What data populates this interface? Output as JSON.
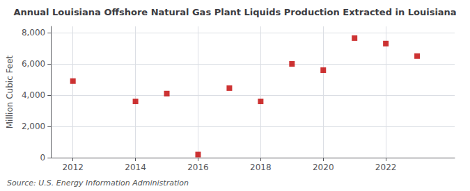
{
  "chart_data": {
    "type": "scatter",
    "title": "Annual Louisiana Offshore Natural Gas Plant Liquids Production Extracted in Louisiana",
    "ylabel": "Million Cubic Feet",
    "source": "Source: U.S. Energy Information Administration",
    "x": [
      2012,
      2014,
      2015,
      2016,
      2017,
      2018,
      2019,
      2020,
      2021,
      2022,
      2023
    ],
    "values": [
      4900,
      3600,
      4100,
      200,
      4450,
      3600,
      6000,
      5600,
      7650,
      7300,
      6500
    ],
    "xlim": [
      2011.3,
      2024.2
    ],
    "ylim": [
      0,
      8400
    ],
    "xticks": [
      2012,
      2014,
      2016,
      2018,
      2020,
      2022
    ],
    "yticks": [
      0,
      {
        "value": 2000,
        "label": "2,000"
      },
      {
        "value": 4000,
        "label": "4,000"
      },
      {
        "value": 6000,
        "label": "6,000"
      },
      {
        "value": 8000,
        "label": "8,000"
      }
    ],
    "color": "#c00000",
    "marker": "square",
    "grid": true
  }
}
